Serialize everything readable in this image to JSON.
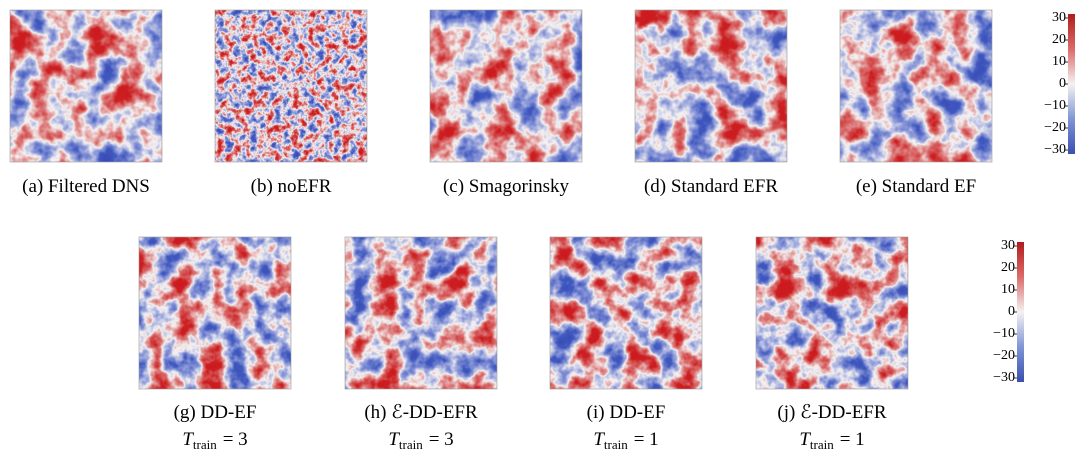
{
  "panels_top": [
    {
      "caption": "(a) Filtered DNS"
    },
    {
      "caption": "(b) noEFR"
    },
    {
      "caption": "(c) Smagorinsky"
    },
    {
      "caption": "(d) Standard EFR"
    },
    {
      "caption": "(e) Standard EF"
    }
  ],
  "panels_bottom": [
    {
      "caption": "(g) DD-EF",
      "variable": "T",
      "subscript": "train",
      "equation": "= 3"
    },
    {
      "caption": "(h) ℰ-DD-EFR",
      "variable": "T",
      "subscript": "train",
      "equation": "= 3"
    },
    {
      "caption": "(i) DD-EF",
      "variable": "T",
      "subscript": "train",
      "equation": "= 1"
    },
    {
      "caption": "(j) ℰ-DD-EFR",
      "variable": "T",
      "subscript": "train",
      "equation": "= 1"
    }
  ],
  "colorbars": [
    {
      "range": [
        -30,
        30
      ],
      "ticks": [
        {
          "value": 30,
          "label": "30"
        },
        {
          "value": 20,
          "label": "20"
        },
        {
          "value": 10,
          "label": "10"
        },
        {
          "value": 0,
          "label": "0"
        },
        {
          "value": -10,
          "label": "−10"
        },
        {
          "value": -20,
          "label": "−20"
        },
        {
          "value": -30,
          "label": "−30"
        }
      ]
    },
    {
      "range": [
        -30,
        30
      ],
      "ticks": [
        {
          "value": 30,
          "label": "30"
        },
        {
          "value": 20,
          "label": "20"
        },
        {
          "value": 10,
          "label": "10"
        },
        {
          "value": 0,
          "label": "0"
        },
        {
          "value": -10,
          "label": "−10"
        },
        {
          "value": -20,
          "label": "−20"
        },
        {
          "value": -30,
          "label": "−30"
        }
      ]
    }
  ]
}
